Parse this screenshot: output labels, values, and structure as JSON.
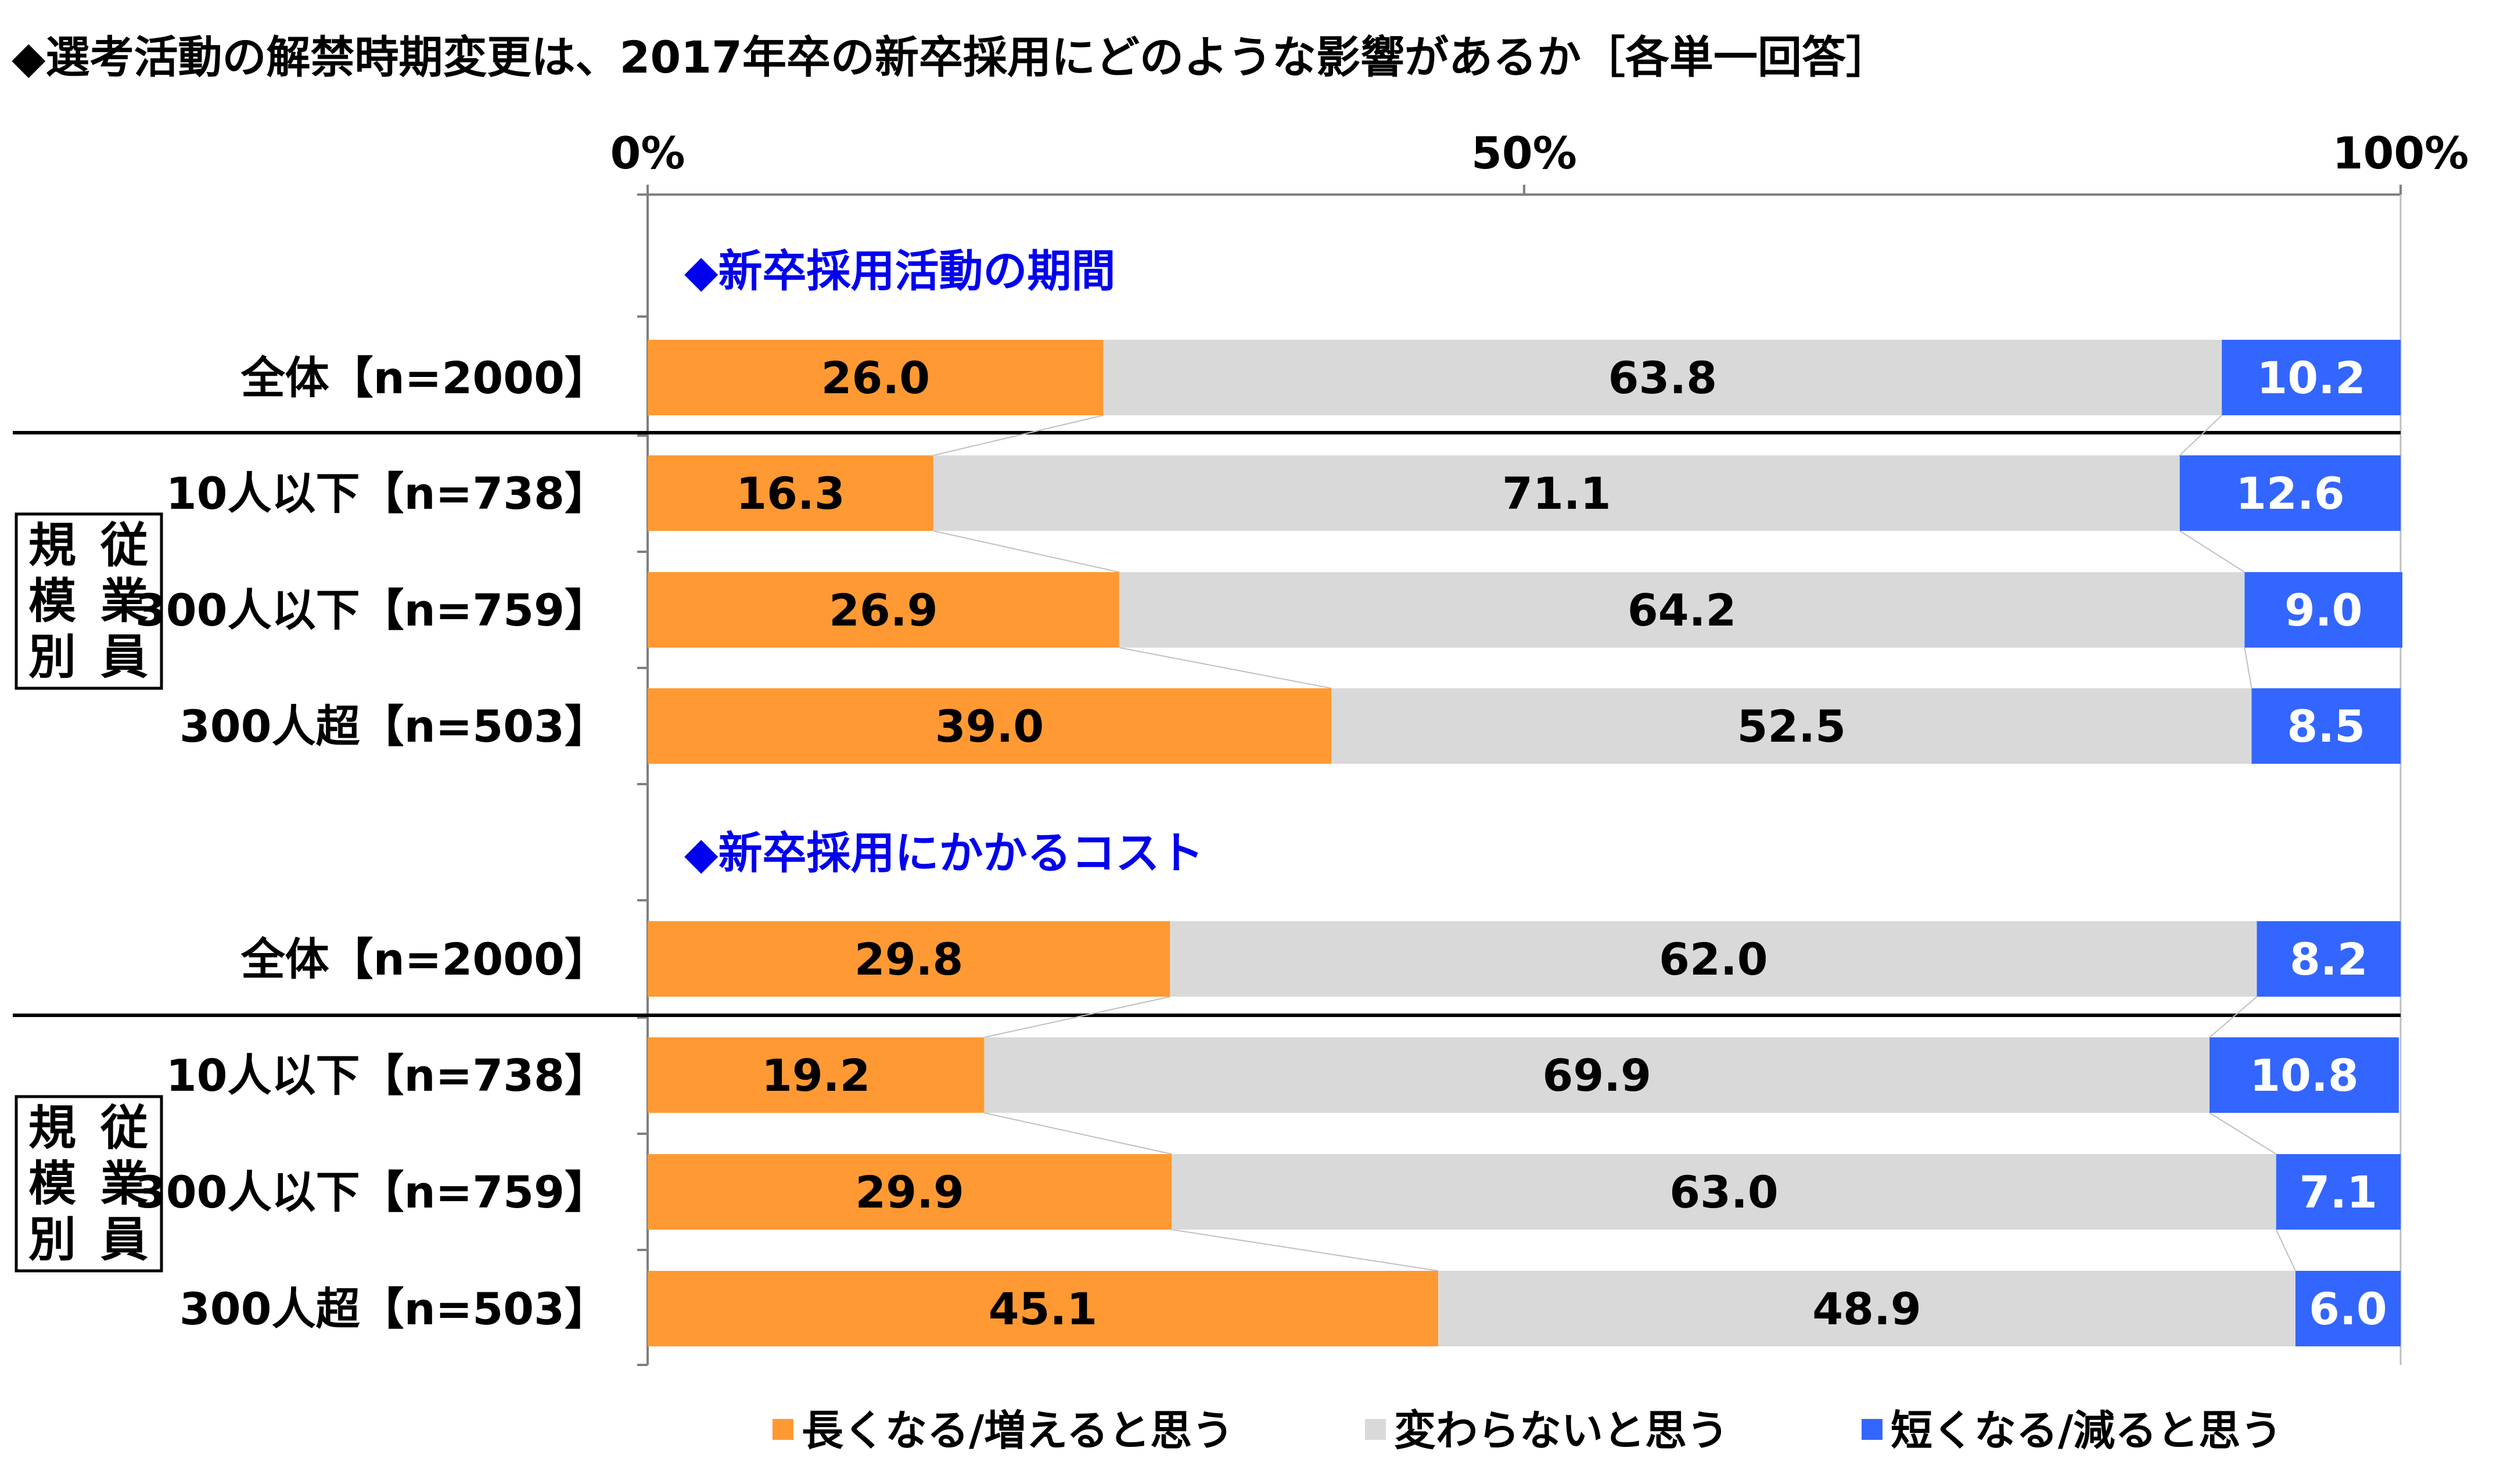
{
  "chart_data": {
    "type": "bar",
    "stacked": true,
    "orientation": "horizontal",
    "title": "◆選考活動の解禁時期変更は、2017年卒の新卒採用にどのような影響があるか［各単一回答］",
    "xlim": [
      0,
      100
    ],
    "x_ticks": [
      "0%",
      "50%",
      "100%"
    ],
    "grid": false,
    "legend_position": "bottom",
    "colors": [
      "#FF9933",
      "#D9D9D9",
      "#3366FF"
    ],
    "group_label_color": "#0000EE",
    "series": [
      {
        "name": "長くなる/増えると思う",
        "color": "#FF9933"
      },
      {
        "name": "変わらないと思う",
        "color": "#D9D9D9"
      },
      {
        "name": "短くなる/減ると思う",
        "color": "#3366FF"
      }
    ],
    "groups": [
      {
        "label": "◆新卒採用活動の期間",
        "side_label": [
          "規",
          "従",
          "模",
          "業",
          "別",
          "員"
        ],
        "rows": [
          {
            "label": "全体【n=2000】",
            "values": [
              26.0,
              63.8,
              10.2
            ],
            "texts": [
              "26.0",
              "63.8",
              "10.2"
            ]
          },
          {
            "label": "10人以下【n=738】",
            "values": [
              16.3,
              71.1,
              12.6
            ],
            "texts": [
              "16.3",
              "71.1",
              "12.6"
            ]
          },
          {
            "label": "300人以下【n=759】",
            "values": [
              26.9,
              64.2,
              9.0
            ],
            "texts": [
              "26.9",
              "64.2",
              "9.0"
            ]
          },
          {
            "label": "300人超【n=503】",
            "values": [
              39.0,
              52.5,
              8.5
            ],
            "texts": [
              "39.0",
              "52.5",
              "8.5"
            ]
          }
        ]
      },
      {
        "label": "◆新卒採用にかかるコスト",
        "side_label": [
          "規",
          "従",
          "模",
          "業",
          "別",
          "員"
        ],
        "rows": [
          {
            "label": "全体【n=2000】",
            "values": [
              29.8,
              62.0,
              8.2
            ],
            "texts": [
              "29.8",
              "62.0",
              "8.2"
            ]
          },
          {
            "label": "10人以下【n=738】",
            "values": [
              19.2,
              69.9,
              10.8
            ],
            "texts": [
              "19.2",
              "69.9",
              "10.8"
            ]
          },
          {
            "label": "300人以下【n=759】",
            "values": [
              29.9,
              63.0,
              7.1
            ],
            "texts": [
              "29.9",
              "63.0",
              "7.1"
            ]
          },
          {
            "label": "300人超【n=503】",
            "values": [
              45.1,
              48.9,
              6.0
            ],
            "texts": [
              "45.1",
              "48.9",
              "6.0"
            ]
          }
        ]
      }
    ]
  }
}
